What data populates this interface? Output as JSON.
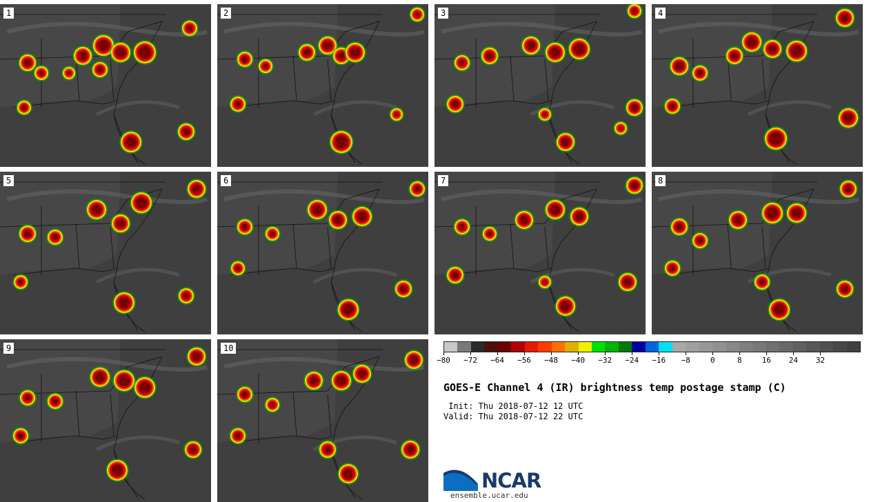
{
  "panels": [
    {
      "label": "1"
    },
    {
      "label": "2"
    },
    {
      "label": "3"
    },
    {
      "label": "4"
    },
    {
      "label": "5"
    },
    {
      "label": "6"
    },
    {
      "label": "7"
    },
    {
      "label": "8"
    },
    {
      "label": "9"
    },
    {
      "label": "10"
    }
  ],
  "colorbar": {
    "colors": [
      "#c8c8c8",
      "#7a7a7a",
      "#2a2a2a",
      "#4a1010",
      "#6e0000",
      "#b00000",
      "#e41a00",
      "#ff3c00",
      "#ff7000",
      "#e0b000",
      "#f0f000",
      "#00e000",
      "#00b400",
      "#007a00",
      "#0000a0",
      "#0064e0",
      "#00e0f0",
      "#a8a8a8",
      "#a0a0a0",
      "#989898",
      "#909090",
      "#888888",
      "#808080",
      "#787878",
      "#707070",
      "#686868",
      "#606060",
      "#585858",
      "#505050",
      "#484848",
      "#404040"
    ],
    "tick_labels": [
      "−80",
      "−72",
      "−64",
      "−56",
      "−48",
      "−40",
      "−32",
      "−24",
      "−16",
      "−8",
      "0",
      "8",
      "16",
      "24",
      "32"
    ]
  },
  "title": "GOES-E Channel 4 (IR) brightness temp postage stamp (C)",
  "init": " Init: Thu 2018-07-12 12 UTC",
  "valid": "Valid: Thu 2018-07-12 22 UTC",
  "logo_text": "NCAR",
  "site": "ensemble.ucar.edu"
}
